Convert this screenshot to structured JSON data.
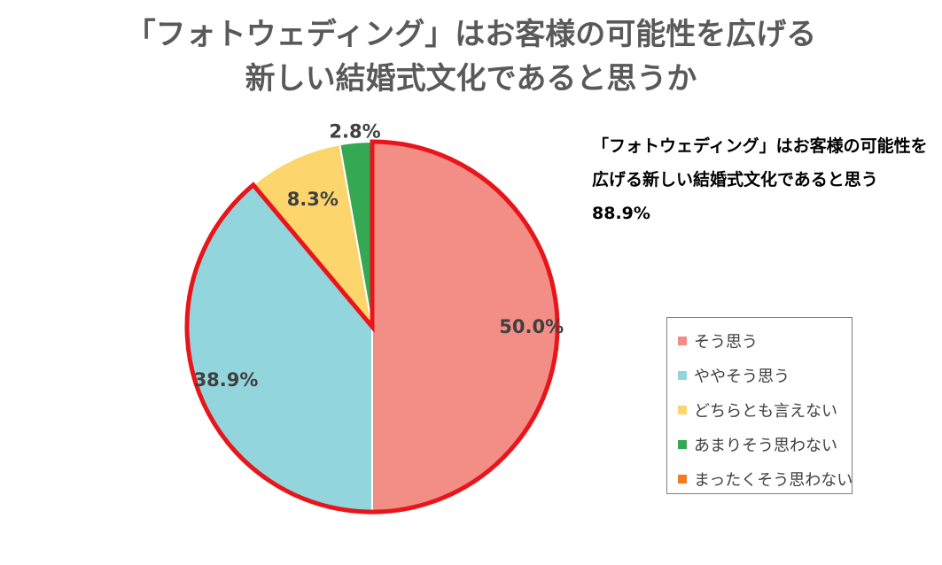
{
  "title_lines": [
    "「フォトウェディング」はお客様の可能性を広げる",
    "新しい結婚式文化であると思うか"
  ],
  "callout": {
    "line1": "「フォトウェディング」はお客様の可能性を",
    "line2": "広げる新しい結婚式文化であると思う",
    "value": "88.9%"
  },
  "chart_data": {
    "type": "pie",
    "title": "「フォトウェディング」はお客様の可能性を広げる新しい結婚式文化であると思うか",
    "categories": [
      "そう思う",
      "ややそう思う",
      "どちらとも言えない",
      "あまりそう思わない",
      "まったくそう思わない"
    ],
    "values": [
      50.0,
      38.9,
      8.3,
      2.8,
      0.0
    ],
    "data_labels": [
      "50.0%",
      "38.9%",
      "8.3%",
      "2.8%",
      ""
    ],
    "colors": [
      "#f28e86",
      "#92d5dc",
      "#fcd56c",
      "#34a853",
      "#f47c20"
    ],
    "highlight_outline_color": "#e8151b",
    "highlighted_categories": [
      "そう思う",
      "ややそう思う"
    ],
    "legend_position": "right"
  }
}
